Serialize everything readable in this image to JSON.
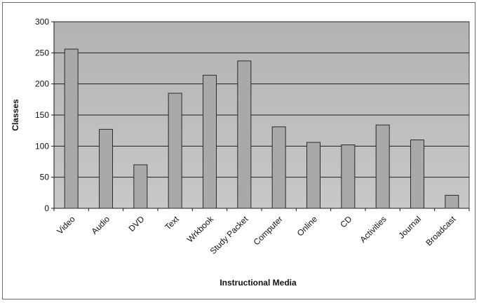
{
  "chart_data": {
    "type": "bar",
    "title": "",
    "xlabel": "Instructional Media",
    "ylabel": "Classes",
    "categories": [
      "Video",
      "Audio",
      "DVD",
      "Text",
      "Wrkbook",
      "Study Packet",
      "Computer",
      "Online",
      "CD",
      "Activities",
      "Journal",
      "Broadcast"
    ],
    "values": [
      256,
      127,
      70,
      185,
      214,
      237,
      131,
      106,
      102,
      134,
      110,
      21
    ],
    "ylim": [
      0,
      300
    ],
    "yticks": [
      0,
      50,
      100,
      150,
      200,
      250,
      300
    ],
    "grid": true,
    "legend": "none",
    "colors": {
      "plot_bg": "#bdbdbd",
      "bar_fill": "#a9a9a9",
      "bar_stroke": "#2b2b2b",
      "grid": "#202020"
    }
  }
}
